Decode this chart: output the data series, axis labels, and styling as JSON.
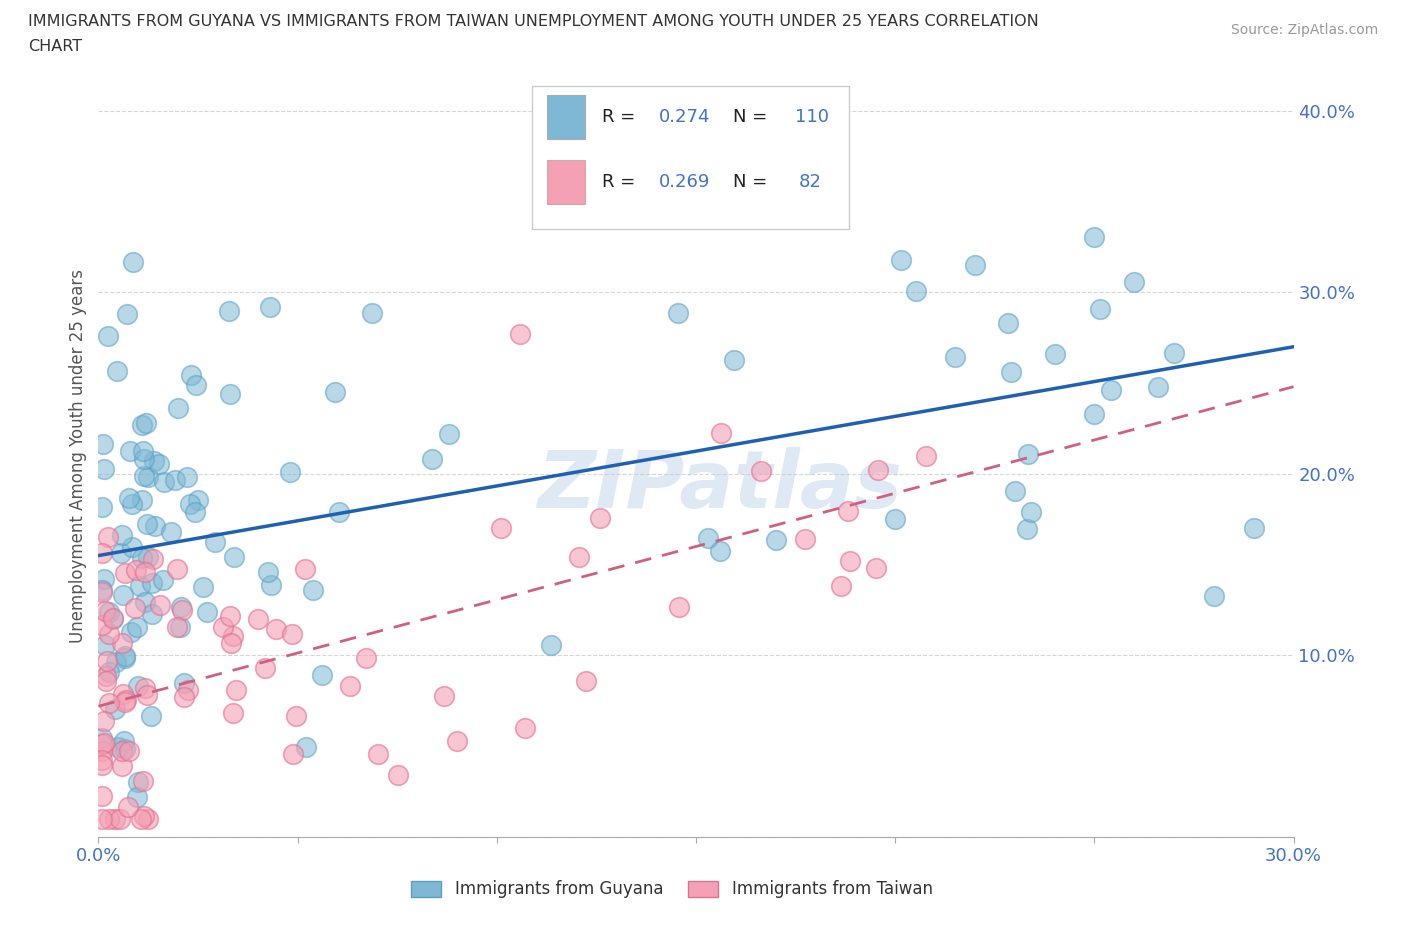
{
  "title_line1": "IMMIGRANTS FROM GUYANA VS IMMIGRANTS FROM TAIWAN UNEMPLOYMENT AMONG YOUTH UNDER 25 YEARS CORRELATION",
  "title_line2": "CHART",
  "source": "Source: ZipAtlas.com",
  "ylabel": "Unemployment Among Youth under 25 years",
  "xlim": [
    0.0,
    0.3
  ],
  "ylim": [
    0.0,
    0.42
  ],
  "xtick_vals": [
    0.0,
    0.05,
    0.1,
    0.15,
    0.2,
    0.25,
    0.3
  ],
  "ytick_vals": [
    0.0,
    0.1,
    0.2,
    0.3,
    0.4
  ],
  "xticklabels": [
    "0.0%",
    "",
    "",
    "",
    "",
    "",
    "30.0%"
  ],
  "yticklabels": [
    "",
    "10.0%",
    "20.0%",
    "30.0%",
    "40.0%"
  ],
  "guyana_color": "#7eb8d4",
  "taiwan_color": "#f4a0b5",
  "guyana_edge_color": "#5a9fc4",
  "taiwan_edge_color": "#e07090",
  "guyana_line_color": "#2060b0",
  "taiwan_line_color": "#d06080",
  "R_guyana": "0.274",
  "N_guyana": "110",
  "R_taiwan": "0.269",
  "N_taiwan": "82",
  "watermark": "ZIPatlas",
  "background_color": "#ffffff",
  "grid_color": "#cccccc",
  "tick_color": "#4472c4",
  "title_color": "#333333",
  "legend_label_guyana": "Immigrants from Guyana",
  "legend_label_taiwan": "Immigrants from Taiwan",
  "guyana_line_y0": 0.155,
  "guyana_line_y1": 0.27,
  "taiwan_line_y0": 0.072,
  "taiwan_line_y1": 0.248
}
